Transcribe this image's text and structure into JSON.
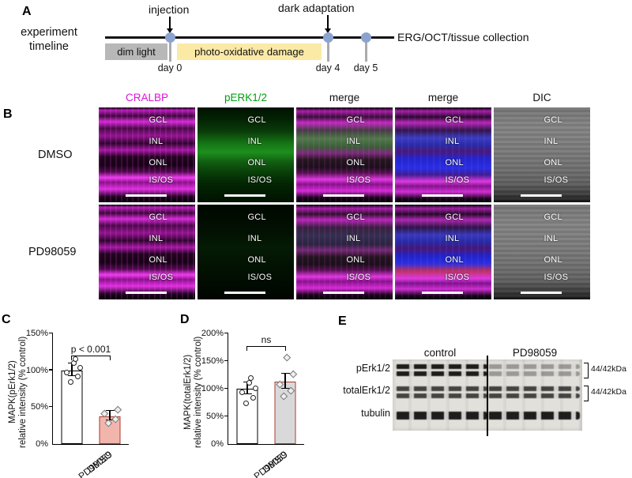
{
  "panel_a": {
    "label": "A",
    "title_line1": "experiment",
    "title_line2": "timeline",
    "injection_label": "injection",
    "dark_adaptation_label": "dark adaptation",
    "dim_light_label": "dim light",
    "damage_label": "photo-oxidative damage",
    "day_labels": [
      "day 0",
      "day 4",
      "day 5"
    ],
    "endpoint_label": "ERG/OCT/tissue collection",
    "colors": {
      "dim_light_bg": "#b8b8b8",
      "damage_bg": "#fbe9a6",
      "timeline_marker": "#8ba3cf"
    }
  },
  "panel_b": {
    "label": "B",
    "column_headers": [
      "CRALBP",
      "pERK1/2",
      "merge",
      "merge",
      "DIC"
    ],
    "header_colors": [
      "#e012e0",
      "#00a010",
      "#000000",
      "#000000",
      "#000000"
    ],
    "row_labels": [
      "DMSO",
      "PD98059"
    ],
    "layer_labels": [
      "GCL",
      "INL",
      "ONL",
      "IS/OS"
    ]
  },
  "chart_data": [
    {
      "type": "bar",
      "panel": "C",
      "ylabel1": "MAPK(pErk1/2)",
      "ylabel2": "relative intensity (% control)",
      "categories": [
        "DMSO",
        "PD98059"
      ],
      "values": [
        100,
        38
      ],
      "errbars": [
        {
          "mean": 100,
          "sem": 8
        },
        {
          "mean": 38,
          "sem": 6
        }
      ],
      "points": {
        "DMSO": [
          85,
          92,
          97,
          104,
          110,
          116
        ],
        "PD98059": [
          30,
          35,
          42,
          48
        ]
      },
      "ylim": [
        0,
        150
      ],
      "yticks": [
        "0%",
        "50%",
        "100%",
        "150%"
      ],
      "significance": "p < 0.001",
      "bar_fill": [
        "#ffffff",
        "#f2b5ac"
      ],
      "bar_border": [
        "#000000",
        "#b03a2e"
      ],
      "grid": false,
      "legend": "none"
    },
    {
      "type": "bar",
      "panel": "D",
      "ylabel1": "MAPK(totalErk1/2)",
      "ylabel2": "relative intensity (% control)",
      "categories": [
        "DMSO",
        "PD98059"
      ],
      "values": [
        100,
        113
      ],
      "errbars": [
        {
          "mean": 100,
          "sem": 10
        },
        {
          "mean": 113,
          "sem": 13
        }
      ],
      "points": {
        "DMSO": [
          75,
          85,
          95,
          102,
          112,
          120
        ],
        "PD98059": [
          88,
          98,
          110,
          128,
          158
        ]
      },
      "ylim": [
        0,
        200
      ],
      "yticks": [
        "0%",
        "50%",
        "100%",
        "150%",
        "200%"
      ],
      "significance": "ns",
      "bar_fill": [
        "#ffffff",
        "#d9d9d9"
      ],
      "bar_border": [
        "#000000",
        "#b03a2e"
      ],
      "grid": false,
      "legend": "none"
    }
  ],
  "panel_e": {
    "label": "E",
    "group_labels": [
      "control",
      "PD98059"
    ],
    "row_labels": [
      "pErk1/2",
      "totalErk1/2",
      "tubulin"
    ],
    "mw_labels": [
      "44/42kDa",
      "44/42kDa"
    ]
  }
}
